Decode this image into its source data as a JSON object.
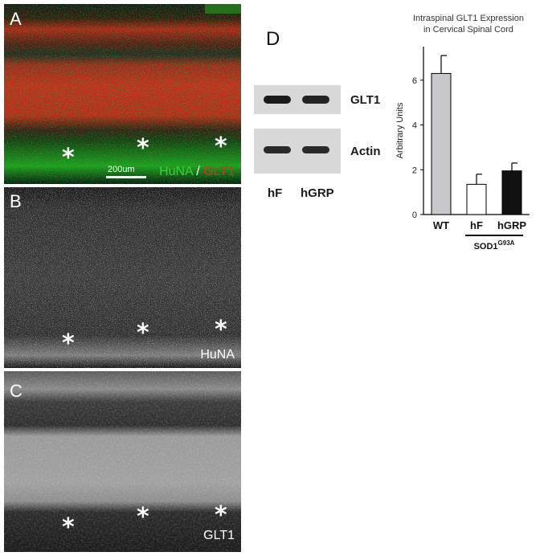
{
  "panels": {
    "a": {
      "letter": "A",
      "scale_bar": "200um",
      "marker_green": "HuNA",
      "marker_sep": " / ",
      "marker_red": "GLT1",
      "green": "#3ccf3c",
      "red": "#e03020"
    },
    "b": {
      "letter": "B",
      "marker": "HuNA"
    },
    "c": {
      "letter": "C",
      "marker": "GLT1"
    },
    "d": {
      "letter": "D",
      "bands": [
        "GLT1",
        "Actin"
      ],
      "lanes": [
        "hF",
        "hGRP"
      ]
    },
    "asterisk": "*"
  },
  "chart_data": {
    "type": "bar",
    "title": "Intraspinal GLT1 Expression",
    "subtitle": "in Cervical Spinal Cord",
    "ylabel": "Arbitrary Units",
    "xlabel": "",
    "categories": [
      "WT",
      "hF",
      "hGRP"
    ],
    "values": [
      6.3,
      1.35,
      1.95
    ],
    "errors": [
      0.8,
      0.45,
      0.35
    ],
    "bar_colors": [
      "#c8c8cc",
      "#ffffff",
      "#111111"
    ],
    "ylim": [
      0,
      7.5
    ],
    "yticks": [
      0,
      2,
      4,
      6
    ],
    "group_label": "SOD1",
    "group_label_sup": "G93A",
    "grid": false
  }
}
